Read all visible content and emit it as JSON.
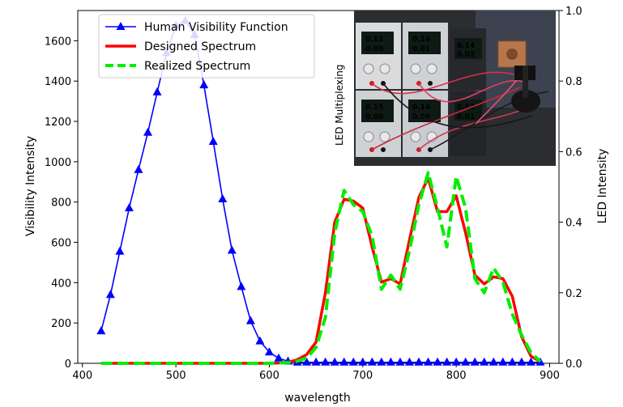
{
  "inset": {
    "label": "LED Multiplexing",
    "psu_readouts": [
      "0.12",
      "0.00",
      "0.14",
      "0.01",
      "0.14",
      "0.02",
      "0.15",
      "0.00",
      "0.14",
      "0.00",
      "0.13",
      "0.01"
    ]
  },
  "chart_data": {
    "type": "line",
    "xlabel": "wavelength",
    "ylabel": "Visibility Intensity",
    "y2label": "LED Intensity",
    "xlim": [
      395,
      910
    ],
    "ylim": [
      0,
      1750
    ],
    "y2lim": [
      0,
      1.0
    ],
    "xticks": [
      400,
      500,
      600,
      700,
      800,
      900
    ],
    "yticks": [
      0,
      200,
      400,
      600,
      800,
      1000,
      1200,
      1400,
      1600
    ],
    "y2ticks": [
      0.0,
      0.2,
      0.4,
      0.6,
      0.8,
      1.0
    ],
    "xtick_labels": [
      "400",
      "500",
      "600",
      "700",
      "800",
      "900"
    ],
    "ytick_labels": [
      "0",
      "200",
      "400",
      "600",
      "800",
      "1000",
      "1200",
      "1400",
      "1600"
    ],
    "y2tick_labels": [
      "0.0",
      "0.2",
      "0.4",
      "0.6",
      "0.8",
      "1.0"
    ],
    "legend_position": "top-left",
    "series": [
      {
        "name": "Human Visibility Function",
        "axis": "left",
        "color": "#0000ff",
        "marker": "triangle-up",
        "style": "solid",
        "x": [
          420,
          430,
          440,
          450,
          460,
          470,
          480,
          490,
          500,
          510,
          520,
          530,
          540,
          550,
          560,
          570,
          580,
          590,
          600,
          610,
          620,
          630,
          640,
          650,
          660,
          670,
          680,
          690,
          700,
          710,
          720,
          730,
          740,
          750,
          760,
          770,
          780,
          790,
          800,
          810,
          820,
          830,
          840,
          850,
          860,
          870,
          880,
          890
        ],
        "y": [
          160,
          340,
          555,
          770,
          960,
          1145,
          1345,
          1540,
          1675,
          1700,
          1630,
          1380,
          1100,
          815,
          560,
          380,
          210,
          110,
          55,
          25,
          10,
          5,
          5,
          5,
          5,
          5,
          5,
          5,
          5,
          5,
          5,
          5,
          5,
          5,
          5,
          5,
          5,
          5,
          5,
          5,
          5,
          5,
          5,
          5,
          5,
          5,
          5,
          5
        ]
      },
      {
        "name": "Designed Spectrum",
        "axis": "right",
        "color": "#ff0000",
        "style": "solid",
        "x": [
          420,
          440,
          460,
          480,
          500,
          520,
          540,
          560,
          580,
          600,
          610,
          620,
          630,
          640,
          650,
          660,
          670,
          680,
          690,
          700,
          710,
          720,
          730,
          740,
          750,
          760,
          770,
          780,
          790,
          800,
          810,
          820,
          830,
          840,
          850,
          860,
          870,
          880,
          890
        ],
        "y": [
          0,
          0,
          0,
          0,
          0,
          0,
          0,
          0,
          0,
          0,
          0.001,
          0.003,
          0.01,
          0.025,
          0.06,
          0.2,
          0.4,
          0.465,
          0.46,
          0.44,
          0.33,
          0.23,
          0.24,
          0.225,
          0.35,
          0.47,
          0.525,
          0.43,
          0.43,
          0.475,
          0.37,
          0.25,
          0.225,
          0.245,
          0.24,
          0.19,
          0.075,
          0.02,
          0.005
        ]
      },
      {
        "name": "Realized Spectrum",
        "axis": "right",
        "color": "#00ee00",
        "style": "dashed",
        "x": [
          420,
          440,
          460,
          480,
          500,
          520,
          540,
          560,
          580,
          600,
          610,
          620,
          630,
          640,
          650,
          660,
          670,
          680,
          690,
          700,
          710,
          720,
          730,
          740,
          750,
          760,
          770,
          780,
          790,
          800,
          810,
          820,
          830,
          840,
          850,
          860,
          870,
          880,
          890
        ],
        "y": [
          0,
          0,
          0,
          0,
          0,
          0,
          0,
          0,
          0,
          0,
          0.001,
          0.002,
          0.006,
          0.015,
          0.045,
          0.13,
          0.37,
          0.49,
          0.45,
          0.43,
          0.36,
          0.21,
          0.25,
          0.21,
          0.32,
          0.45,
          0.54,
          0.44,
          0.33,
          0.53,
          0.44,
          0.24,
          0.2,
          0.27,
          0.23,
          0.14,
          0.08,
          0.03,
          0.005
        ]
      }
    ]
  }
}
